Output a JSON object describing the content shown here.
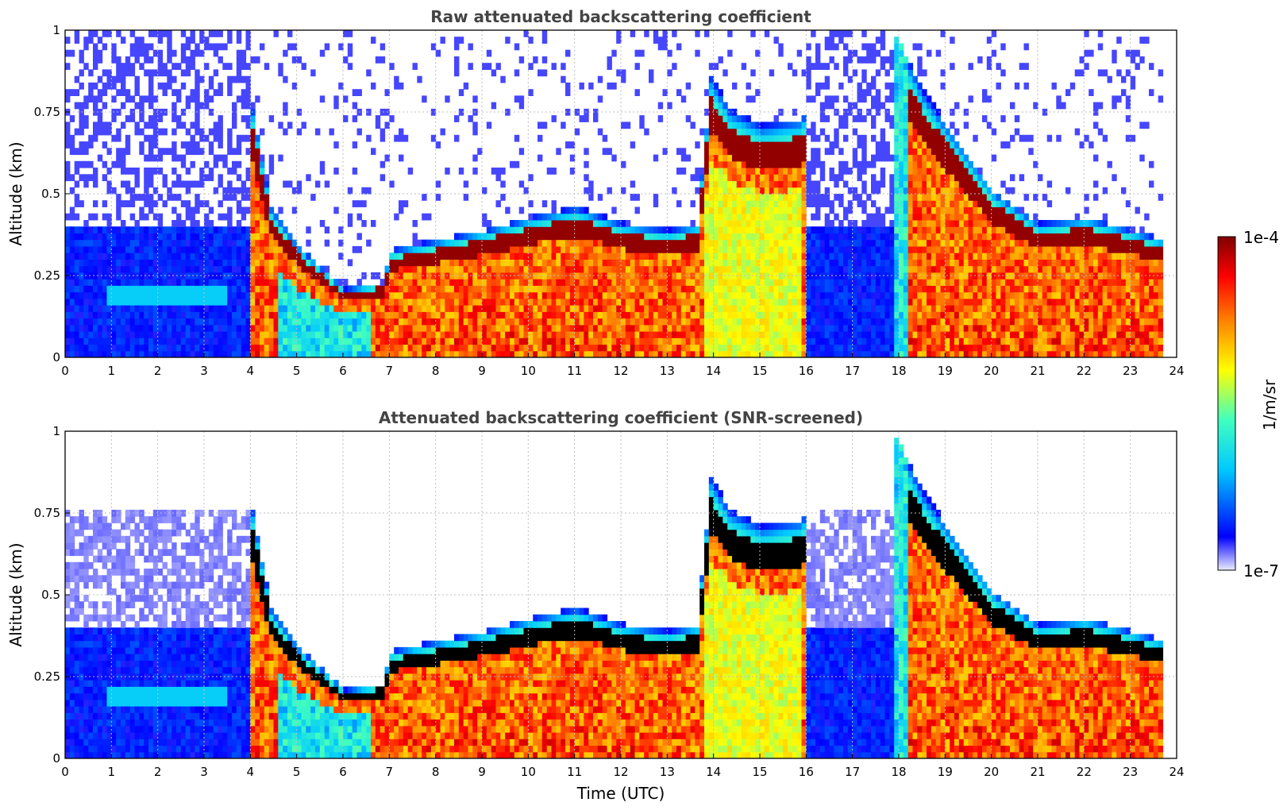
{
  "chart_data": [
    {
      "type": "heatmap",
      "title": "Raw attenuated backscattering coefficient",
      "xlabel": "",
      "ylabel": "Altitude (km)",
      "xlim": [
        0,
        24
      ],
      "ylim": [
        0,
        1
      ],
      "x_ticks": [
        "0",
        "1",
        "2",
        "3",
        "4",
        "5",
        "6",
        "7",
        "8",
        "9",
        "10",
        "11",
        "12",
        "13",
        "14",
        "15",
        "16",
        "17",
        "18",
        "19",
        "20",
        "21",
        "22",
        "23",
        "24"
      ],
      "y_ticks": [
        "0",
        "0.25",
        "0.5",
        "0.75",
        "1"
      ],
      "grid": true,
      "screened": false,
      "boundary_layer_top_km": [
        {
          "t": 4.0,
          "z": 0.75
        },
        {
          "t": 4.4,
          "z": 0.45
        },
        {
          "t": 5.0,
          "z": 0.33
        },
        {
          "t": 6.0,
          "z": 0.2
        },
        {
          "t": 6.8,
          "z": 0.22
        },
        {
          "t": 7.0,
          "z": 0.32
        },
        {
          "t": 8.0,
          "z": 0.35
        },
        {
          "t": 9.0,
          "z": 0.38
        },
        {
          "t": 10.0,
          "z": 0.42
        },
        {
          "t": 11.0,
          "z": 0.45
        },
        {
          "t": 12.0,
          "z": 0.4
        },
        {
          "t": 13.0,
          "z": 0.38
        },
        {
          "t": 13.6,
          "z": 0.4
        },
        {
          "t": 13.9,
          "z": 0.85
        },
        {
          "t": 14.3,
          "z": 0.75
        },
        {
          "t": 15.0,
          "z": 0.7
        },
        {
          "t": 15.8,
          "z": 0.72
        },
        {
          "t": 17.8,
          "z": 1.0
        },
        {
          "t": 18.5,
          "z": 0.8
        },
        {
          "t": 19.0,
          "z": 0.7
        },
        {
          "t": 20.0,
          "z": 0.5
        },
        {
          "t": 21.0,
          "z": 0.4
        },
        {
          "t": 22.0,
          "z": 0.42
        },
        {
          "t": 23.0,
          "z": 0.38
        },
        {
          "t": 23.7,
          "z": 0.35
        }
      ]
    },
    {
      "type": "heatmap",
      "title": "Attenuated backscattering coefficient (SNR-screened)",
      "xlabel": "Time (UTC)",
      "ylabel": "Altitude (km)",
      "xlim": [
        0,
        24
      ],
      "ylim": [
        0,
        1
      ],
      "x_ticks": [
        "0",
        "1",
        "2",
        "3",
        "4",
        "5",
        "6",
        "7",
        "8",
        "9",
        "10",
        "11",
        "12",
        "13",
        "14",
        "15",
        "16",
        "17",
        "18",
        "19",
        "20",
        "21",
        "22",
        "23",
        "24"
      ],
      "y_ticks": [
        "0",
        "0.25",
        "0.5",
        "0.75",
        "1"
      ],
      "grid": true,
      "screened": true,
      "boundary_layer_top_km": [
        {
          "t": 4.0,
          "z": 0.75
        },
        {
          "t": 4.4,
          "z": 0.45
        },
        {
          "t": 5.0,
          "z": 0.33
        },
        {
          "t": 6.0,
          "z": 0.2
        },
        {
          "t": 6.8,
          "z": 0.22
        },
        {
          "t": 7.0,
          "z": 0.32
        },
        {
          "t": 8.0,
          "z": 0.35
        },
        {
          "t": 9.0,
          "z": 0.38
        },
        {
          "t": 10.0,
          "z": 0.42
        },
        {
          "t": 11.0,
          "z": 0.45
        },
        {
          "t": 12.0,
          "z": 0.4
        },
        {
          "t": 13.0,
          "z": 0.38
        },
        {
          "t": 13.6,
          "z": 0.4
        },
        {
          "t": 13.9,
          "z": 0.85
        },
        {
          "t": 14.3,
          "z": 0.75
        },
        {
          "t": 15.0,
          "z": 0.7
        },
        {
          "t": 15.8,
          "z": 0.72
        },
        {
          "t": 17.8,
          "z": 1.0
        },
        {
          "t": 18.5,
          "z": 0.8
        },
        {
          "t": 19.0,
          "z": 0.7
        },
        {
          "t": 20.0,
          "z": 0.5
        },
        {
          "t": 21.0,
          "z": 0.4
        },
        {
          "t": 22.0,
          "z": 0.42
        },
        {
          "t": 23.0,
          "z": 0.38
        },
        {
          "t": 23.7,
          "z": 0.35
        }
      ]
    }
  ],
  "colorbar": {
    "label": "1/m/sr",
    "max_label": "1e-4",
    "min_label": "1e-7",
    "scale": "log",
    "range": [
      1e-07,
      0.0001
    ],
    "colormap": [
      "#ebebff",
      "#0000ff",
      "#00c8ff",
      "#40ffc0",
      "#ffff00",
      "#ff8000",
      "#ff0000",
      "#800000"
    ]
  }
}
